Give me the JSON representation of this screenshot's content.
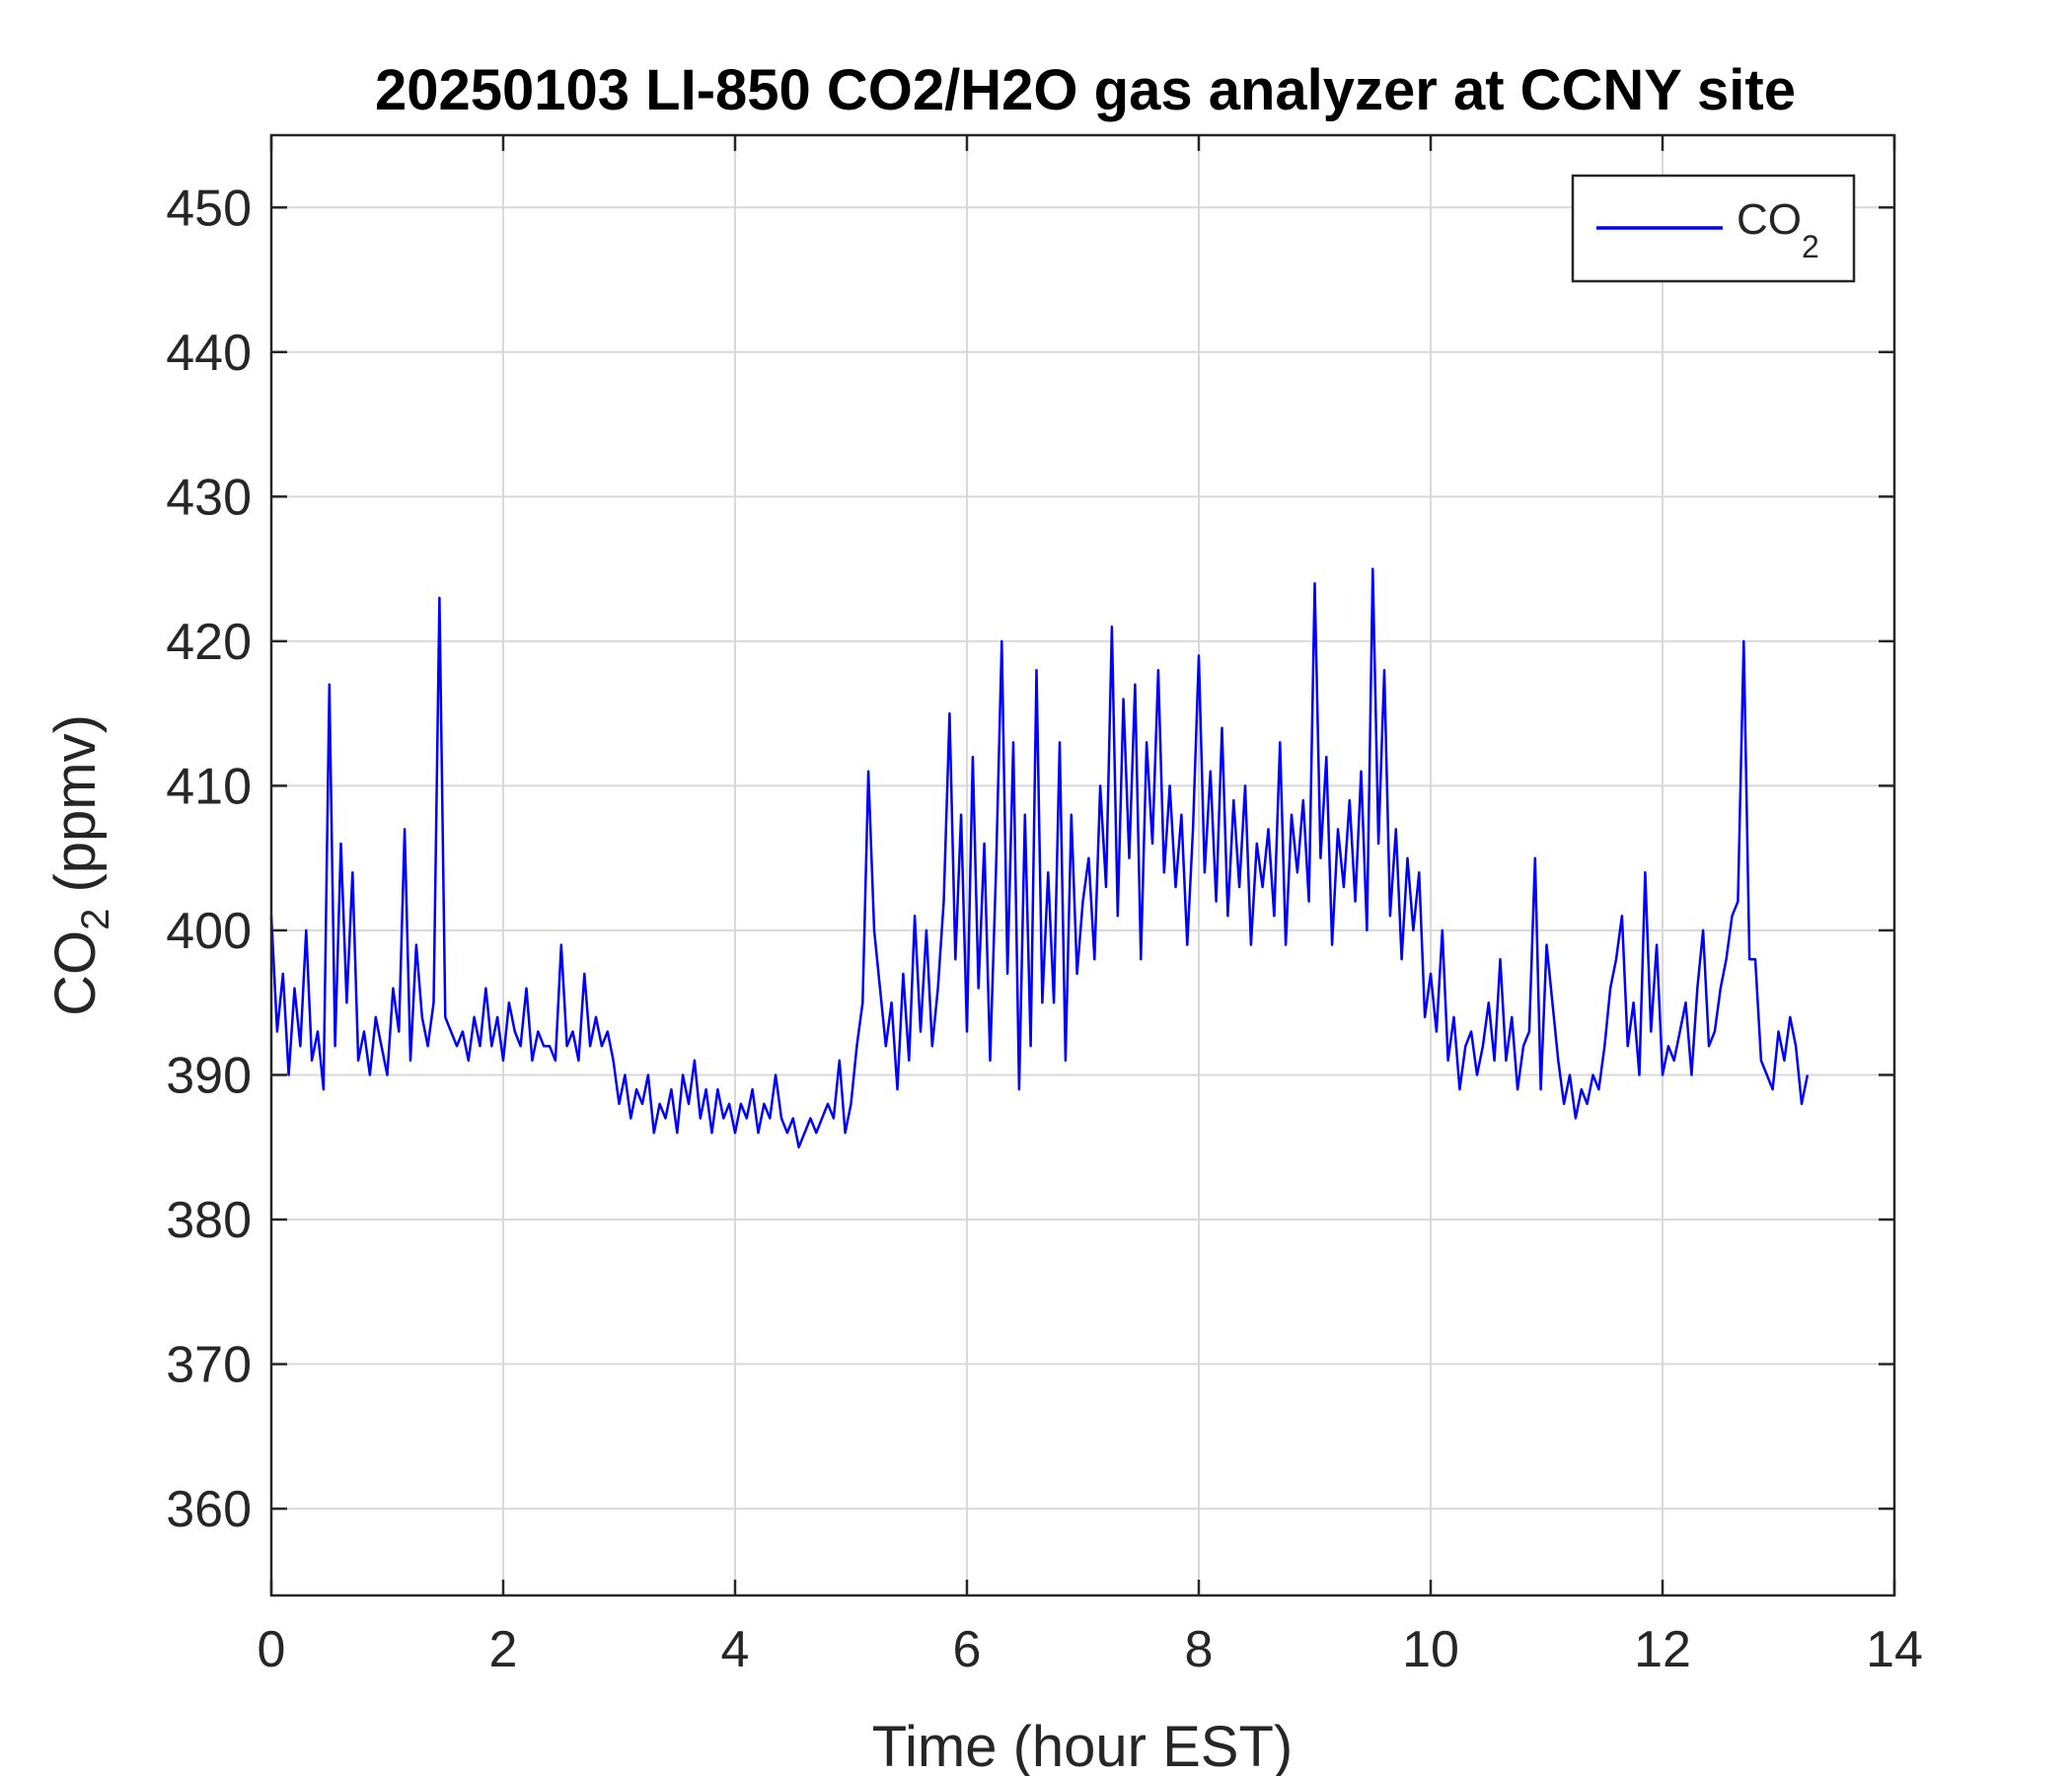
{
  "chart_data": {
    "type": "line",
    "title": "20250103 LI-850 CO2/H2O gas analyzer at CCNY site",
    "xlabel": "Time (hour EST)",
    "ylabel": {
      "main": "CO",
      "sub": "2",
      "suffix": " (ppmv)"
    },
    "xlim": [
      0,
      14
    ],
    "ylim": [
      354,
      455
    ],
    "xticks": [
      0,
      2,
      4,
      6,
      8,
      10,
      12,
      14
    ],
    "yticks": [
      360,
      370,
      380,
      390,
      400,
      410,
      420,
      430,
      440,
      450
    ],
    "grid": true,
    "legend_position": "top-right",
    "colors": {
      "series": "#0000ff",
      "axes": "#262626",
      "grid": "#d9d9d9"
    },
    "series": [
      {
        "name": {
          "main": "CO",
          "sub": "2"
        },
        "x": [
          0.0,
          0.05,
          0.1,
          0.15,
          0.2,
          0.25,
          0.3,
          0.35,
          0.4,
          0.45,
          0.5,
          0.55,
          0.6,
          0.65,
          0.7,
          0.75,
          0.8,
          0.85,
          0.9,
          0.95,
          1.0,
          1.05,
          1.1,
          1.15,
          1.2,
          1.25,
          1.3,
          1.35,
          1.4,
          1.45,
          1.5,
          1.55,
          1.6,
          1.65,
          1.7,
          1.75,
          1.8,
          1.85,
          1.9,
          1.95,
          2.0,
          2.05,
          2.1,
          2.15,
          2.2,
          2.25,
          2.3,
          2.35,
          2.4,
          2.45,
          2.5,
          2.55,
          2.6,
          2.65,
          2.7,
          2.75,
          2.8,
          2.85,
          2.9,
          2.95,
          3.0,
          3.05,
          3.1,
          3.15,
          3.2,
          3.25,
          3.3,
          3.35,
          3.4,
          3.45,
          3.5,
          3.55,
          3.6,
          3.65,
          3.7,
          3.75,
          3.8,
          3.85,
          3.9,
          3.95,
          4.0,
          4.05,
          4.1,
          4.15,
          4.2,
          4.25,
          4.3,
          4.35,
          4.4,
          4.45,
          4.5,
          4.55,
          4.6,
          4.65,
          4.7,
          4.75,
          4.8,
          4.85,
          4.9,
          4.95,
          5.0,
          5.05,
          5.1,
          5.15,
          5.2,
          5.25,
          5.3,
          5.35,
          5.4,
          5.45,
          5.5,
          5.55,
          5.6,
          5.65,
          5.7,
          5.75,
          5.8,
          5.85,
          5.9,
          5.95,
          6.0,
          6.05,
          6.1,
          6.15,
          6.2,
          6.25,
          6.3,
          6.35,
          6.4,
          6.45,
          6.5,
          6.55,
          6.6,
          6.65,
          6.7,
          6.75,
          6.8,
          6.85,
          6.9,
          6.95,
          7.0,
          7.05,
          7.1,
          7.15,
          7.2,
          7.25,
          7.3,
          7.35,
          7.4,
          7.45,
          7.5,
          7.55,
          7.6,
          7.65,
          7.7,
          7.75,
          7.8,
          7.85,
          7.9,
          7.95,
          8.0,
          8.05,
          8.1,
          8.15,
          8.2,
          8.25,
          8.3,
          8.35,
          8.4,
          8.45,
          8.5,
          8.55,
          8.6,
          8.65,
          8.7,
          8.75,
          8.8,
          8.85,
          8.9,
          8.95,
          9.0,
          9.05,
          9.1,
          9.15,
          9.2,
          9.25,
          9.3,
          9.35,
          9.4,
          9.45,
          9.5,
          9.55,
          9.6,
          9.65,
          9.7,
          9.75,
          9.8,
          9.85,
          9.9,
          9.95,
          10.0,
          10.05,
          10.1,
          10.15,
          10.2,
          10.25,
          10.3,
          10.35,
          10.4,
          10.45,
          10.5,
          10.55,
          10.6,
          10.65,
          10.7,
          10.75,
          10.8,
          10.85,
          10.9,
          10.95,
          11.0,
          11.05,
          11.1,
          11.15,
          11.2,
          11.25,
          11.3,
          11.35,
          11.4,
          11.45,
          11.5,
          11.55,
          11.6,
          11.65,
          11.7,
          11.75,
          11.8,
          11.85,
          11.9,
          11.95,
          12.0,
          12.05,
          12.1,
          12.15,
          12.2,
          12.25,
          12.3,
          12.35,
          12.4,
          12.45,
          12.5,
          12.55,
          12.6,
          12.65,
          12.7,
          12.75,
          12.8,
          12.85,
          12.9,
          12.95,
          13.0,
          13.05,
          13.1,
          13.15,
          13.2,
          13.25
        ],
        "y": [
          401,
          393,
          397,
          390,
          396,
          392,
          400,
          391,
          393,
          389,
          417,
          392,
          406,
          395,
          404,
          391,
          393,
          390,
          394,
          392,
          390,
          396,
          393,
          407,
          391,
          399,
          394,
          392,
          395,
          423,
          394,
          393,
          392,
          393,
          391,
          394,
          392,
          396,
          392,
          394,
          391,
          395,
          393,
          392,
          396,
          391,
          393,
          392,
          392,
          391,
          399,
          392,
          393,
          391,
          397,
          392,
          394,
          392,
          393,
          391,
          388,
          390,
          387,
          389,
          388,
          390,
          386,
          388,
          387,
          389,
          386,
          390,
          388,
          391,
          387,
          389,
          386,
          389,
          387,
          388,
          386,
          388,
          387,
          389,
          386,
          388,
          387,
          390,
          387,
          386,
          387,
          385,
          386,
          387,
          386,
          387,
          388,
          387,
          391,
          386,
          388,
          392,
          395,
          411,
          400,
          396,
          392,
          395,
          389,
          397,
          391,
          401,
          393,
          400,
          392,
          396,
          402,
          415,
          398,
          408,
          393,
          412,
          396,
          406,
          391,
          404,
          420,
          397,
          413,
          389,
          408,
          392,
          418,
          395,
          404,
          395,
          413,
          391,
          408,
          397,
          402,
          405,
          398,
          410,
          403,
          421,
          401,
          416,
          405,
          417,
          398,
          413,
          406,
          418,
          404,
          410,
          403,
          408,
          399,
          407,
          419,
          404,
          411,
          402,
          414,
          401,
          409,
          403,
          410,
          399,
          406,
          403,
          407,
          401,
          413,
          399,
          408,
          404,
          409,
          402,
          424,
          405,
          412,
          399,
          407,
          403,
          409,
          402,
          411,
          400,
          425,
          406,
          418,
          401,
          407,
          398,
          405,
          400,
          404,
          394,
          397,
          393,
          400,
          391,
          394,
          389,
          392,
          393,
          390,
          392,
          395,
          391,
          398,
          391,
          394,
          389,
          392,
          393,
          405,
          389,
          399,
          395,
          391,
          388,
          390,
          387,
          389,
          388,
          390,
          389,
          392,
          396,
          398,
          401,
          392,
          395,
          390,
          404,
          393,
          399,
          390,
          392,
          391,
          393,
          395,
          390,
          396,
          400,
          392,
          393,
          396,
          398,
          401,
          402,
          420,
          398,
          398,
          391,
          390,
          389,
          393,
          391,
          394,
          392,
          388,
          390
        ]
      }
    ]
  }
}
